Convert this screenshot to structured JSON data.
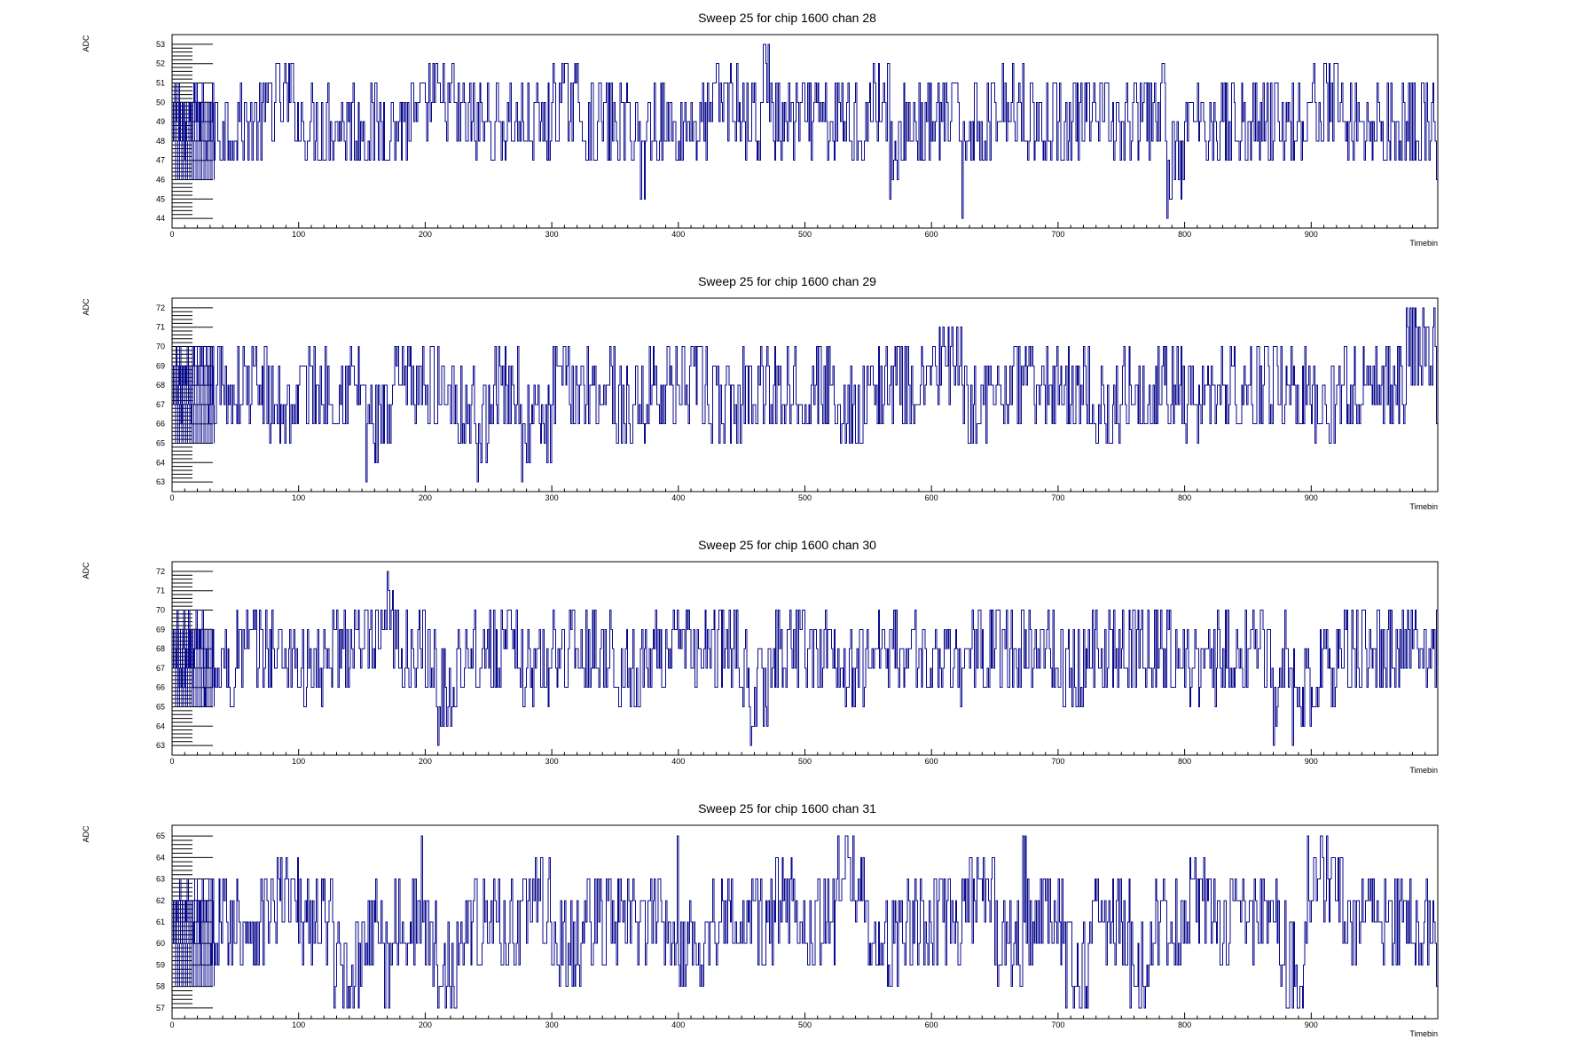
{
  "chart_data": [
    {
      "type": "line",
      "title": "Sweep 25 for chip 1600 chan 28",
      "xlabel": "Timebin",
      "ylabel": "ADC",
      "xlim": [
        0,
        1000
      ],
      "ylim": [
        43.5,
        53.5
      ],
      "xticks": [
        0,
        100,
        200,
        300,
        400,
        500,
        600,
        700,
        800,
        900
      ],
      "yticks": [
        44,
        45,
        46,
        47,
        48,
        49,
        50,
        51,
        52,
        53
      ],
      "series": [
        {
          "color": "#0a0a8c",
          "x": [
            0,
            25,
            50,
            75,
            100,
            125,
            150,
            175,
            200,
            225,
            250,
            275,
            300,
            325,
            350,
            370,
            375,
            400,
            425,
            450,
            467,
            475,
            500,
            525,
            550,
            567,
            575,
            600,
            624,
            625,
            650,
            675,
            700,
            725,
            750,
            775,
            786,
            800,
            825,
            850,
            875,
            900,
            925,
            950,
            975,
            999
          ],
          "values": [
            48,
            49,
            48,
            50,
            48,
            49,
            48,
            49,
            50,
            48,
            49,
            48,
            50,
            48,
            49,
            45,
            49,
            48,
            50,
            49,
            53,
            48,
            49,
            48,
            50,
            45,
            49,
            48,
            44,
            49,
            50,
            48,
            49,
            48,
            49,
            50,
            44,
            49,
            48,
            49,
            48,
            50,
            49,
            48,
            49,
            46
          ]
        }
      ]
    },
    {
      "type": "line",
      "title": "Sweep 25 for chip 1600 chan 29",
      "xlabel": "Timebin",
      "ylabel": "ADC",
      "xlim": [
        0,
        1000
      ],
      "ylim": [
        62.5,
        72.5
      ],
      "xticks": [
        0,
        100,
        200,
        300,
        400,
        500,
        600,
        700,
        800,
        900
      ],
      "yticks": [
        63,
        64,
        65,
        66,
        67,
        68,
        69,
        70,
        71,
        72
      ],
      "series": [
        {
          "color": "#0a0a8c",
          "x": [
            0,
            25,
            50,
            75,
            100,
            125,
            153,
            175,
            200,
            225,
            241,
            250,
            276,
            300,
            325,
            350,
            375,
            400,
            425,
            450,
            475,
            500,
            525,
            550,
            575,
            600,
            625,
            650,
            675,
            700,
            725,
            750,
            775,
            800,
            825,
            850,
            875,
            900,
            925,
            950,
            975,
            999
          ],
          "values": [
            67,
            68,
            67,
            66,
            68,
            67,
            63,
            68,
            67,
            66,
            63,
            68,
            63,
            67,
            68,
            66,
            67,
            68,
            66,
            67,
            68,
            67,
            66,
            68,
            67,
            69,
            66,
            67,
            68,
            67,
            66,
            67,
            68,
            66,
            67,
            68,
            67,
            66,
            68,
            67,
            72,
            66
          ]
        }
      ]
    },
    {
      "type": "line",
      "title": "Sweep 25 for chip 1600 chan 30",
      "xlabel": "Timebin",
      "ylabel": "ADC",
      "xlim": [
        0,
        1000
      ],
      "ylim": [
        62.5,
        72.5
      ],
      "xticks": [
        0,
        100,
        200,
        300,
        400,
        500,
        600,
        700,
        800,
        900
      ],
      "yticks": [
        63,
        64,
        65,
        66,
        67,
        68,
        69,
        70,
        71,
        72
      ],
      "series": [
        {
          "color": "#0a0a8c",
          "x": [
            0,
            25,
            50,
            75,
            100,
            125,
            150,
            170,
            175,
            200,
            210,
            225,
            250,
            275,
            300,
            325,
            350,
            375,
            400,
            425,
            450,
            457,
            475,
            500,
            525,
            550,
            575,
            600,
            625,
            650,
            675,
            700,
            725,
            750,
            775,
            800,
            825,
            850,
            870,
            875,
            885,
            900,
            925,
            950,
            975,
            999
          ],
          "values": [
            67,
            66,
            67,
            68,
            66,
            67,
            68,
            72,
            67,
            66,
            63,
            68,
            67,
            66,
            68,
            67,
            66,
            67,
            68,
            67,
            66,
            63,
            68,
            67,
            66,
            67,
            68,
            66,
            67,
            68,
            67,
            66,
            67,
            68,
            67,
            66,
            67,
            68,
            63,
            67,
            63,
            66,
            67,
            68,
            67,
            70
          ]
        }
      ]
    },
    {
      "type": "line",
      "title": "Sweep 25 for chip 1600 chan 31",
      "xlabel": "Timebin",
      "ylabel": "ADC",
      "xlim": [
        0,
        1000
      ],
      "ylim": [
        56.5,
        65.5
      ],
      "xticks": [
        0,
        100,
        200,
        300,
        400,
        500,
        600,
        700,
        800,
        900
      ],
      "yticks": [
        57,
        58,
        59,
        60,
        61,
        62,
        63,
        64,
        65
      ],
      "series": [
        {
          "color": "#0a0a8c",
          "x": [
            0,
            25,
            50,
            75,
            100,
            128,
            150,
            168,
            175,
            197,
            200,
            210,
            225,
            250,
            275,
            300,
            325,
            350,
            375,
            399,
            400,
            425,
            450,
            475,
            500,
            526,
            550,
            575,
            600,
            625,
            650,
            672,
            675,
            706,
            725,
            757,
            775,
            800,
            825,
            850,
            875,
            880,
            897,
            925,
            950,
            975,
            999
          ],
          "values": [
            60,
            61,
            60,
            62,
            60,
            57,
            61,
            57,
            60,
            65,
            59,
            57,
            61,
            60,
            62,
            59,
            60,
            61,
            60,
            65,
            59,
            61,
            60,
            62,
            60,
            65,
            59,
            61,
            60,
            62,
            59,
            65,
            60,
            57,
            61,
            57,
            60,
            62,
            60,
            61,
            59,
            57,
            65,
            60,
            61,
            60,
            58
          ]
        }
      ]
    }
  ]
}
